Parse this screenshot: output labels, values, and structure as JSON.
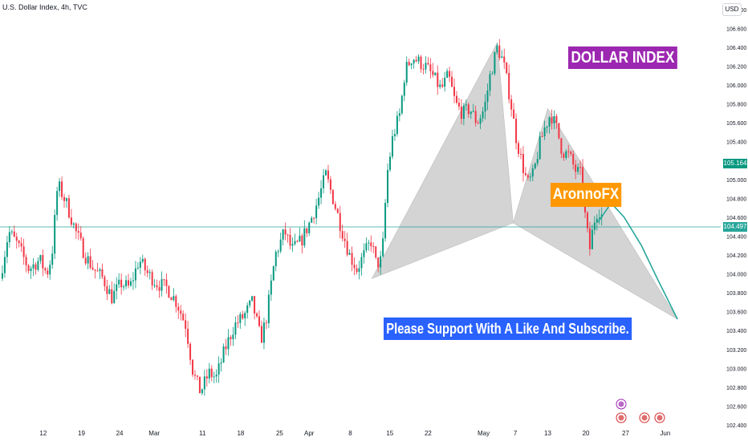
{
  "header": {
    "title": "U.S. Dollar Index, 4h, TVC",
    "currency": "USD"
  },
  "annotations": {
    "dollar_index": "DOLLAR INDEX",
    "author": "AronnoFX",
    "support": "Please Support With A Like And Subscribe."
  },
  "colors": {
    "up": "#089981",
    "down": "#f23645",
    "pattern_fill": "#c8c8c8",
    "projection": "#26a69a",
    "dollar_box": "#9c27b0",
    "author_box": "#ff9800",
    "support_box": "#2962ff",
    "current_price": "#089981",
    "level_price": "#26a69a"
  },
  "price_tags": {
    "current": "105.164",
    "level": "104.497"
  },
  "chart_data": {
    "type": "candlestick",
    "title": "U.S. Dollar Index, 4h, TVC",
    "xlabel": "",
    "ylabel": "",
    "ylim": [
      102.4,
      106.9
    ],
    "grid": false,
    "y_axis_ticks": [
      "106.800",
      "106.600",
      "106.400",
      "106.200",
      "106.000",
      "105.800",
      "105.600",
      "105.400",
      "105.200",
      "105.000",
      "104.800",
      "104.600",
      "104.400",
      "104.200",
      "104.000",
      "103.800",
      "103.600",
      "103.400",
      "103.200",
      "103.000",
      "102.800",
      "102.600",
      "102.400"
    ],
    "x_axis_ticks": [
      {
        "label": "12",
        "x": 0.06
      },
      {
        "label": "19",
        "x": 0.113
      },
      {
        "label": "24",
        "x": 0.166
      },
      {
        "label": "Mar",
        "x": 0.214
      },
      {
        "label": "11",
        "x": 0.281
      },
      {
        "label": "18",
        "x": 0.334
      },
      {
        "label": "25",
        "x": 0.388
      },
      {
        "label": "Apr",
        "x": 0.429
      },
      {
        "label": "8",
        "x": 0.486
      },
      {
        "label": "15",
        "x": 0.541
      },
      {
        "label": "22",
        "x": 0.594
      },
      {
        "label": "May",
        "x": 0.671
      },
      {
        "label": "7",
        "x": 0.715
      },
      {
        "label": "13",
        "x": 0.76
      },
      {
        "label": "20",
        "x": 0.813
      },
      {
        "label": "27",
        "x": 0.868
      },
      {
        "label": "Jun",
        "x": 0.923
      }
    ],
    "price_path": [
      {
        "x": 0.0,
        "y": 103.95
      },
      {
        "x": 0.012,
        "y": 104.45
      },
      {
        "x": 0.025,
        "y": 104.3
      },
      {
        "x": 0.04,
        "y": 104.05
      },
      {
        "x": 0.055,
        "y": 104.15
      },
      {
        "x": 0.065,
        "y": 104.0
      },
      {
        "x": 0.072,
        "y": 104.2
      },
      {
        "x": 0.08,
        "y": 104.95
      },
      {
        "x": 0.092,
        "y": 104.75
      },
      {
        "x": 0.105,
        "y": 104.45
      },
      {
        "x": 0.118,
        "y": 104.2
      },
      {
        "x": 0.13,
        "y": 104.05
      },
      {
        "x": 0.143,
        "y": 103.95
      },
      {
        "x": 0.155,
        "y": 103.75
      },
      {
        "x": 0.168,
        "y": 103.9
      },
      {
        "x": 0.18,
        "y": 103.85
      },
      {
        "x": 0.193,
        "y": 104.15
      },
      {
        "x": 0.205,
        "y": 104.0
      },
      {
        "x": 0.218,
        "y": 103.9
      },
      {
        "x": 0.232,
        "y": 103.85
      },
      {
        "x": 0.245,
        "y": 103.7
      },
      {
        "x": 0.258,
        "y": 103.45
      },
      {
        "x": 0.268,
        "y": 102.95
      },
      {
        "x": 0.278,
        "y": 102.75
      },
      {
        "x": 0.29,
        "y": 102.95
      },
      {
        "x": 0.3,
        "y": 102.9
      },
      {
        "x": 0.312,
        "y": 103.2
      },
      {
        "x": 0.325,
        "y": 103.45
      },
      {
        "x": 0.338,
        "y": 103.55
      },
      {
        "x": 0.35,
        "y": 103.7
      },
      {
        "x": 0.362,
        "y": 103.3
      },
      {
        "x": 0.37,
        "y": 103.55
      },
      {
        "x": 0.382,
        "y": 104.2
      },
      {
        "x": 0.395,
        "y": 104.45
      },
      {
        "x": 0.405,
        "y": 104.25
      },
      {
        "x": 0.418,
        "y": 104.35
      },
      {
        "x": 0.43,
        "y": 104.55
      },
      {
        "x": 0.44,
        "y": 104.75
      },
      {
        "x": 0.452,
        "y": 105.05
      },
      {
        "x": 0.462,
        "y": 104.8
      },
      {
        "x": 0.475,
        "y": 104.45
      },
      {
        "x": 0.485,
        "y": 104.2
      },
      {
        "x": 0.495,
        "y": 104.05
      },
      {
        "x": 0.505,
        "y": 104.2
      },
      {
        "x": 0.515,
        "y": 104.35
      },
      {
        "x": 0.522,
        "y": 104.1
      },
      {
        "x": 0.53,
        "y": 104.15
      },
      {
        "x": 0.537,
        "y": 105.05
      },
      {
        "x": 0.545,
        "y": 105.45
      },
      {
        "x": 0.555,
        "y": 105.7
      },
      {
        "x": 0.562,
        "y": 106.15
      },
      {
        "x": 0.572,
        "y": 106.3
      },
      {
        "x": 0.58,
        "y": 106.25
      },
      {
        "x": 0.59,
        "y": 106.2
      },
      {
        "x": 0.6,
        "y": 106.1
      },
      {
        "x": 0.612,
        "y": 105.95
      },
      {
        "x": 0.622,
        "y": 106.1
      },
      {
        "x": 0.632,
        "y": 105.8
      },
      {
        "x": 0.642,
        "y": 105.7
      },
      {
        "x": 0.652,
        "y": 105.75
      },
      {
        "x": 0.662,
        "y": 105.6
      },
      {
        "x": 0.672,
        "y": 105.75
      },
      {
        "x": 0.68,
        "y": 106.1
      },
      {
        "x": 0.69,
        "y": 106.4
      },
      {
        "x": 0.698,
        "y": 106.25
      },
      {
        "x": 0.708,
        "y": 105.85
      },
      {
        "x": 0.716,
        "y": 105.45
      },
      {
        "x": 0.725,
        "y": 105.15
      },
      {
        "x": 0.732,
        "y": 104.95
      },
      {
        "x": 0.74,
        "y": 105.05
      },
      {
        "x": 0.748,
        "y": 105.35
      },
      {
        "x": 0.756,
        "y": 105.55
      },
      {
        "x": 0.764,
        "y": 105.7
      },
      {
        "x": 0.772,
        "y": 105.55
      },
      {
        "x": 0.78,
        "y": 105.3
      },
      {
        "x": 0.79,
        "y": 105.25
      },
      {
        "x": 0.798,
        "y": 105.1
      },
      {
        "x": 0.806,
        "y": 105.05
      },
      {
        "x": 0.812,
        "y": 104.6
      },
      {
        "x": 0.818,
        "y": 104.25
      },
      {
        "x": 0.824,
        "y": 104.55
      },
      {
        "x": 0.83,
        "y": 104.7
      },
      {
        "x": 0.836,
        "y": 104.6
      }
    ],
    "harmonic_pattern": {
      "X": {
        "x": 0.516,
        "y": 103.95
      },
      "A": {
        "x": 0.69,
        "y": 106.45
      },
      "B": {
        "x": 0.712,
        "y": 104.54
      },
      "C": {
        "x": 0.76,
        "y": 105.75
      },
      "D": {
        "x": 0.94,
        "y": 103.52
      }
    },
    "projection_path": [
      {
        "x": 0.83,
        "y": 104.55
      },
      {
        "x": 0.848,
        "y": 104.75
      },
      {
        "x": 0.866,
        "y": 104.6
      },
      {
        "x": 0.89,
        "y": 104.3
      },
      {
        "x": 0.912,
        "y": 103.95
      },
      {
        "x": 0.94,
        "y": 103.52
      }
    ],
    "horizontal_level": 104.497,
    "current_price": 105.164
  }
}
